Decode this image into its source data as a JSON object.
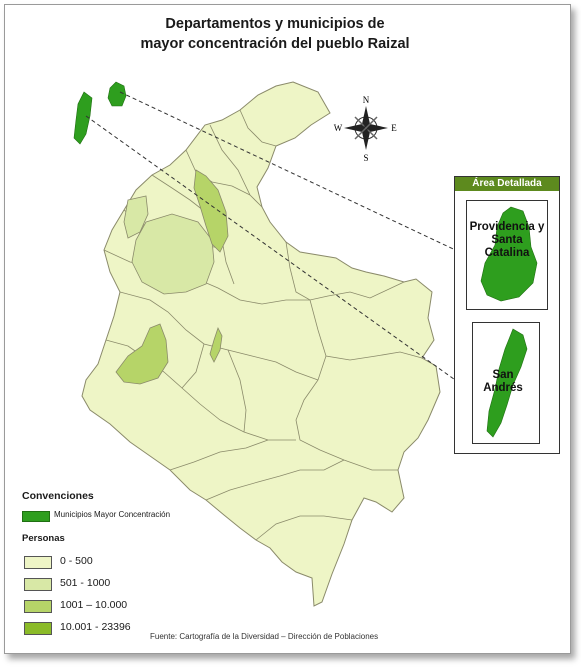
{
  "title": {
    "line1": "Departamentos y municipios de",
    "line2": "mayor concentración del pueblo Raizal"
  },
  "compass": {
    "n": "N",
    "s": "S",
    "e": "E",
    "w": "W"
  },
  "detail": {
    "header": "Área Detallada",
    "panel1_label": "Providencia y Santa Catalina",
    "panel2_label": "San Andrés"
  },
  "legend": {
    "convenciones_heading": "Convenciones",
    "convencion_item": "Municipios Mayor Concentración",
    "personas_heading": "Personas",
    "classes": [
      {
        "label": "0 - 500",
        "color": "#eef5c6"
      },
      {
        "label": "501 - 1000",
        "color": "#d8e8a6"
      },
      {
        "label": "1001 – 10.000",
        "color": "#b6d468"
      },
      {
        "label": "10.001 - 23396",
        "color": "#8bbb28"
      }
    ]
  },
  "colors": {
    "dept_base": "#eef5c6",
    "dept_border": "#8a8a6a",
    "highlight_light": "#d8e8a6",
    "highlight_mid": "#b6d468",
    "island_green": "#2e9e1e"
  },
  "source": "Fuente: Cartografía de la Diversidad – Dirección de Poblaciones"
}
